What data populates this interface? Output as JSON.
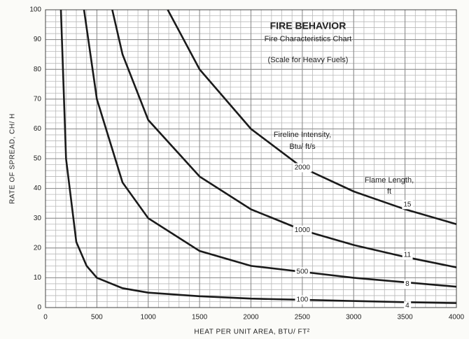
{
  "chart_data": {
    "type": "line",
    "title": "FIRE BEHAVIOR",
    "subtitle": "Fire Characteristics Chart",
    "note": "(Scale for Heavy Fuels)",
    "xlabel": "HEAT PER UNIT AREA, BTU/ FT²",
    "ylabel": "RATE OF SPREAD, CH/ H",
    "intensity_label": [
      "Fireline Intensity,",
      "Btu/ ft/s"
    ],
    "flame_label": [
      "Flame Length,",
      "ft"
    ],
    "xlim": [
      0,
      4000
    ],
    "ylim": [
      0,
      100
    ],
    "xticks": [
      0,
      500,
      1000,
      1500,
      2000,
      2500,
      3000,
      3500,
      4000
    ],
    "yticks": [
      0,
      10,
      20,
      30,
      40,
      50,
      60,
      70,
      80,
      90,
      100
    ],
    "grid": true,
    "minor_grid": {
      "x": 100,
      "y": 2
    },
    "series": [
      {
        "name": "100",
        "flame_length": "4",
        "color": "#1a1a1a",
        "x": [
          150,
          200,
          300,
          400,
          500,
          750,
          1000,
          1500,
          2000,
          2500,
          3000,
          3500,
          4000
        ],
        "values": [
          100,
          50,
          22,
          14,
          10,
          6.5,
          5,
          3.8,
          3,
          2.6,
          2.2,
          1.8,
          1.5
        ]
      },
      {
        "name": "500",
        "flame_length": "8",
        "color": "#1a1a1a",
        "x": [
          375,
          500,
          750,
          1000,
          1500,
          2000,
          2500,
          3000,
          3500,
          4000
        ],
        "values": [
          100,
          70,
          42,
          30,
          19,
          14,
          12,
          10,
          8.5,
          7
        ]
      },
      {
        "name": "1000",
        "flame_length": "11",
        "color": "#1a1a1a",
        "x": [
          650,
          750,
          1000,
          1500,
          2000,
          2500,
          3000,
          3500,
          4000
        ],
        "values": [
          100,
          85,
          63,
          44,
          33,
          26,
          21,
          17,
          13.5
        ]
      },
      {
        "name": "2000",
        "flame_length": "15",
        "color": "#1a1a1a",
        "x": [
          1190,
          1500,
          2000,
          2500,
          3000,
          3500,
          4000
        ],
        "values": [
          100,
          80,
          60,
          47,
          39,
          33,
          28
        ]
      }
    ]
  }
}
